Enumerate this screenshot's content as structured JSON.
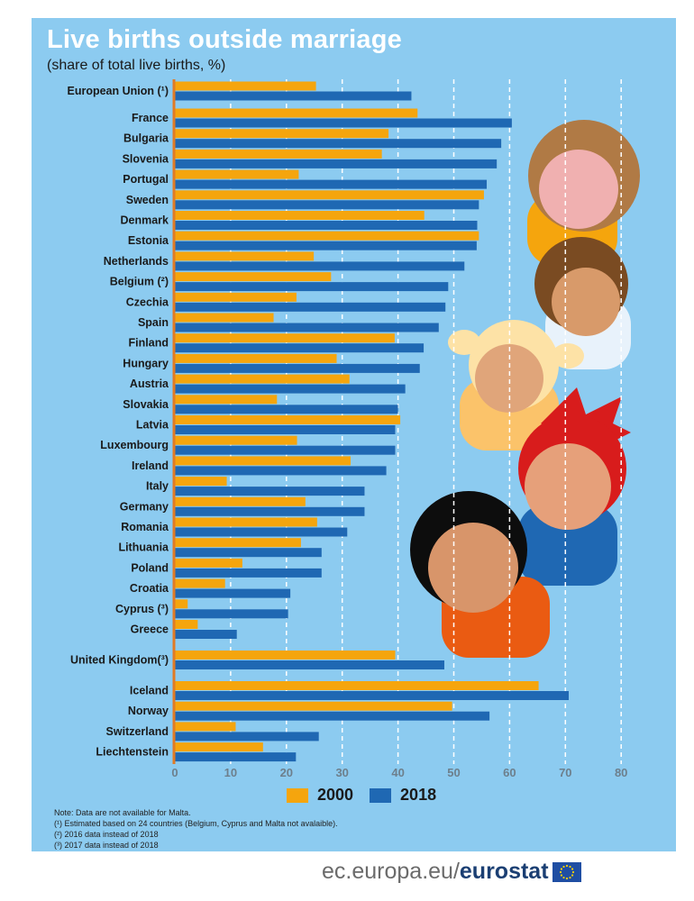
{
  "colors": {
    "series_2000": "#f5a50d",
    "series_2018": "#1f68b3",
    "background": "#8ccbf0",
    "axis": "#e07b26"
  },
  "chart_data": {
    "type": "bar",
    "orientation": "horizontal",
    "title": "Live births outside marriage",
    "subtitle": "(share of total live births, %)",
    "xlabel": "",
    "ylabel": "",
    "xlim": [
      0,
      80
    ],
    "xticks": [
      "0",
      "10",
      "20",
      "30",
      "40",
      "50",
      "60",
      "70",
      "80"
    ],
    "grid": "vertical dashed",
    "legend_position": "bottom",
    "categories": [
      {
        "label": "European Union (¹)",
        "group": "eu"
      },
      {
        "label": "France",
        "group": "members"
      },
      {
        "label": "Bulgaria",
        "group": "members"
      },
      {
        "label": "Slovenia",
        "group": "members"
      },
      {
        "label": "Portugal",
        "group": "members"
      },
      {
        "label": "Sweden",
        "group": "members"
      },
      {
        "label": "Denmark",
        "group": "members"
      },
      {
        "label": "Estonia",
        "group": "members"
      },
      {
        "label": "Netherlands",
        "group": "members"
      },
      {
        "label": "Belgium (²)",
        "group": "members"
      },
      {
        "label": "Czechia",
        "group": "members"
      },
      {
        "label": "Spain",
        "group": "members"
      },
      {
        "label": "Finland",
        "group": "members"
      },
      {
        "label": "Hungary",
        "group": "members"
      },
      {
        "label": "Austria",
        "group": "members"
      },
      {
        "label": "Slovakia",
        "group": "members"
      },
      {
        "label": "Latvia",
        "group": "members"
      },
      {
        "label": "Luxembourg",
        "group": "members"
      },
      {
        "label": "Ireland",
        "group": "members"
      },
      {
        "label": "Italy",
        "group": "members"
      },
      {
        "label": "Germany",
        "group": "members"
      },
      {
        "label": "Romania",
        "group": "members"
      },
      {
        "label": "Lithuania",
        "group": "members"
      },
      {
        "label": "Poland",
        "group": "members"
      },
      {
        "label": "Croatia",
        "group": "members"
      },
      {
        "label": "Cyprus (³)",
        "group": "members"
      },
      {
        "label": "Greece",
        "group": "members"
      },
      {
        "label": "United Kingdom(³)",
        "group": "uk"
      },
      {
        "label": "Iceland",
        "group": "efta"
      },
      {
        "label": "Norway",
        "group": "efta"
      },
      {
        "label": "Switzerland",
        "group": "efta"
      },
      {
        "label": "Liechtenstein",
        "group": "efta"
      }
    ],
    "series": [
      {
        "name": "2000",
        "values": [
          25.3,
          43.5,
          38.3,
          37.1,
          22.2,
          55.4,
          44.7,
          54.5,
          24.9,
          28.0,
          21.8,
          17.7,
          39.4,
          29.0,
          31.3,
          18.3,
          40.4,
          21.9,
          31.5,
          9.3,
          23.4,
          25.5,
          22.6,
          12.1,
          9.0,
          2.3,
          4.1,
          39.5,
          65.2,
          49.7,
          10.9,
          15.8
        ]
      },
      {
        "name": "2018",
        "values": [
          42.4,
          60.4,
          58.5,
          57.7,
          55.9,
          54.5,
          54.2,
          54.1,
          51.9,
          49.0,
          48.5,
          47.3,
          44.6,
          43.9,
          41.3,
          40.0,
          39.5,
          39.5,
          37.9,
          34.0,
          34.0,
          30.9,
          26.3,
          26.3,
          20.7,
          20.3,
          11.1,
          48.3,
          70.6,
          56.4,
          25.8,
          21.7
        ]
      }
    ]
  },
  "legend": {
    "item_2000": "2000",
    "item_2018": "2018"
  },
  "notes": [
    "Note: Data are not available for Malta.",
    "(¹) Estimated based on 24 countries (Belgium, Cyprus and Malta not avalaible).",
    "(²) 2016 data instead of 2018",
    "(³) 2017 data instead of 2018"
  ],
  "footer": {
    "domain": "ec.europa.eu/",
    "brand": "eurostat"
  }
}
